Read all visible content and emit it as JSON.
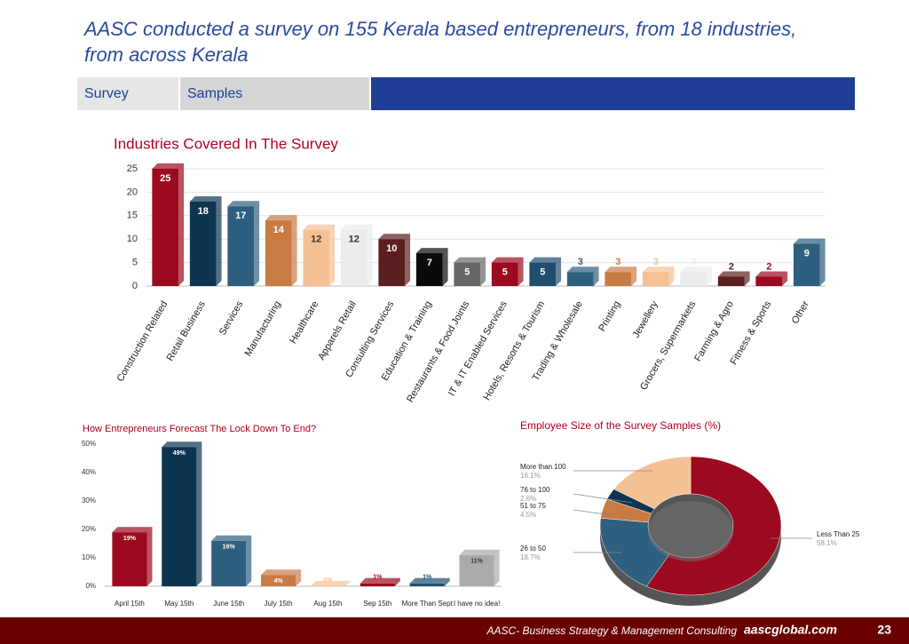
{
  "header": {
    "title": "AASC conducted a survey on 155 Kerala based entrepreneurs, from 18 industries, from across Kerala",
    "tabs": [
      "Survey",
      "Samples"
    ]
  },
  "chart_data": [
    {
      "type": "bar",
      "title": "Industries Covered In The Survey",
      "categories": [
        "Construction Related",
        "Retail Business",
        "Services",
        "Manufacturing",
        "Healthcare",
        "Apparels Retail",
        "Consulting Services",
        "Education & Training",
        "Restaurants & Food Joints",
        "IT & IT Enabled Services",
        "Hotels, Resorts & Tourism",
        "Trading & Wholesale",
        "Printing",
        "Jewellery",
        "Grocers, Supermarkets",
        "Farming & Agro",
        "Fitness & Sports",
        "Other"
      ],
      "values": [
        25,
        18,
        17,
        14,
        12,
        12,
        10,
        7,
        5,
        5,
        5,
        3,
        3,
        3,
        3,
        2,
        2,
        9
      ],
      "colors": [
        "#9b0a1e",
        "#0e3550",
        "#2f5f80",
        "#c97b44",
        "#f5c094",
        "#ececec",
        "#5b1f1f",
        "#0a0a0a",
        "#666666",
        "#9b0a1e",
        "#1f4e6e",
        "#2f5f80",
        "#c97b44",
        "#f5c094",
        "#ececec",
        "#5b1f1f",
        "#9b0a1e",
        "#2f5f80"
      ],
      "ylim": [
        0,
        25
      ],
      "yticks": [
        0,
        5,
        10,
        15,
        20,
        25
      ],
      "grid": true
    },
    {
      "type": "bar",
      "title": "How Entrepreneurs Forecast The Lock Down To End?",
      "categories": [
        "April 15th",
        "May 15th",
        "June 15th",
        "July 15th",
        "Aug 15th",
        "Sep 15th",
        "More Than Sept",
        "I have no idea!"
      ],
      "values": [
        19,
        49,
        16,
        4,
        0,
        1,
        1,
        11
      ],
      "value_labels": [
        "19%",
        "49%",
        "16%",
        "4%",
        "0%",
        "1%",
        "1%",
        "11%"
      ],
      "colors": [
        "#9b0a1e",
        "#0e3550",
        "#2f5f80",
        "#c97b44",
        "#f5c094",
        "#9b0a1e",
        "#1f4e6e",
        "#aaaaaa"
      ],
      "ylim": [
        0,
        50
      ],
      "yticks": [
        {
          "value": 0,
          "label": "0%"
        },
        {
          "value": 10,
          "label": "10%"
        },
        {
          "value": 20,
          "label": "20%"
        },
        {
          "value": 30,
          "label": "30%"
        },
        {
          "value": 40,
          "label": "40%"
        },
        {
          "value": 50,
          "label": "50%"
        }
      ],
      "grid": false
    },
    {
      "type": "pie",
      "title": "Employee Size of the Survey Samples (%)",
      "categories": [
        "Less Than 25",
        "26 to 50",
        "51 to 75",
        "76 to 100",
        "More than 100"
      ],
      "values": [
        58.1,
        18.7,
        4.5,
        2.6,
        16.1
      ],
      "value_labels": [
        "58.1%",
        "18.7%",
        "4.5%",
        "2.6%",
        "16.1%"
      ],
      "colors": [
        "#9b0a1e",
        "#2f5f80",
        "#c97b44",
        "#0e3550",
        "#f5c094"
      ]
    }
  ],
  "footer": {
    "text": "AASC- Business Strategy & Management Consulting",
    "site": "aascglobal.com",
    "page": 23
  }
}
